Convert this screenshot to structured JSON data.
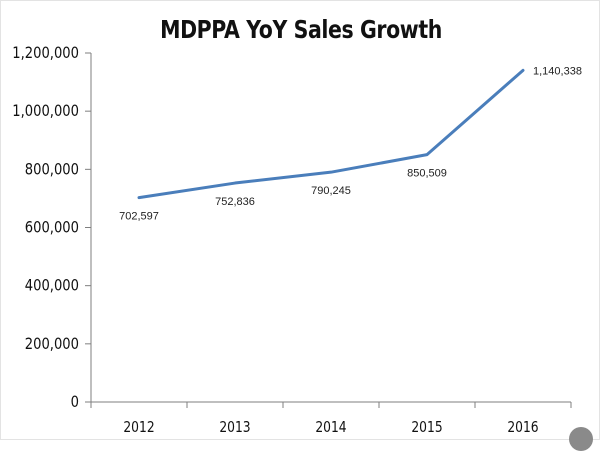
{
  "chart_data": {
    "type": "line",
    "title": "MDPPA YoY Sales Growth",
    "xlabel": "",
    "ylabel": "",
    "categories": [
      "2012",
      "2013",
      "2014",
      "2015",
      "2016"
    ],
    "series": [
      {
        "name": "Sales",
        "values": [
          702597,
          752836,
          790245,
          850509,
          1140338
        ]
      }
    ],
    "data_labels": [
      "702,597",
      "752,836",
      "790,245",
      "850,509",
      "1,140,338"
    ],
    "ylim": [
      0,
      1200000
    ],
    "yticks": [
      0,
      200000,
      400000,
      600000,
      800000,
      1000000,
      1200000
    ],
    "ytick_labels": [
      "0",
      "200,000",
      "400,000",
      "600,000",
      "800,000",
      "1,000,000",
      "1,200,000"
    ],
    "line_color": "#4A7EBB",
    "grid": false,
    "legend": "none"
  }
}
